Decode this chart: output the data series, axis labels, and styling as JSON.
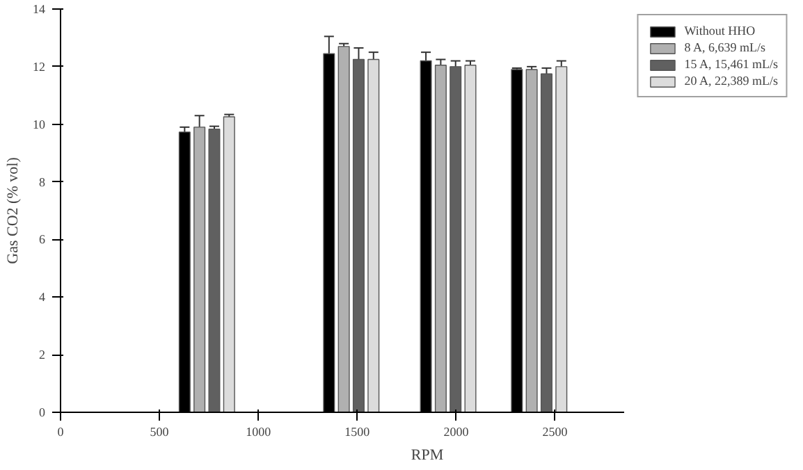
{
  "chart_data": {
    "type": "bar",
    "xlabel": "RPM",
    "ylabel": "Gas CO2 (% vol)",
    "x": [
      740,
      1470,
      1960,
      2420
    ],
    "series": [
      {
        "name": "Without HHO",
        "color": "#000000",
        "values": [
          9.73,
          12.45,
          12.2,
          11.9
        ],
        "errors": [
          0.17,
          0.6,
          0.3,
          0.05
        ]
      },
      {
        "name": "8 A, 6,639 mL/s",
        "color": "#b0b0b0",
        "values": [
          9.9,
          12.7,
          12.05,
          11.9
        ],
        "errors": [
          0.4,
          0.1,
          0.2,
          0.1
        ]
      },
      {
        "name": "15 A, 15,461 mL/s",
        "color": "#606060",
        "values": [
          9.83,
          12.25,
          12.0,
          11.75
        ],
        "errors": [
          0.1,
          0.4,
          0.2,
          0.2
        ]
      },
      {
        "name": "20 A, 22,389 mL/s",
        "color": "#dcdcdc",
        "values": [
          10.26,
          12.25,
          12.05,
          12.0
        ],
        "errors": [
          0.08,
          0.25,
          0.15,
          0.2
        ]
      }
    ],
    "xlim": [
      0,
      2850
    ],
    "xticks": [
      0,
      500,
      1000,
      1500,
      2000,
      2500
    ],
    "ylim": [
      0,
      14
    ],
    "yticks": [
      0,
      2,
      4,
      6,
      8,
      10,
      12,
      14
    ],
    "grid": false,
    "legend": "top right"
  }
}
